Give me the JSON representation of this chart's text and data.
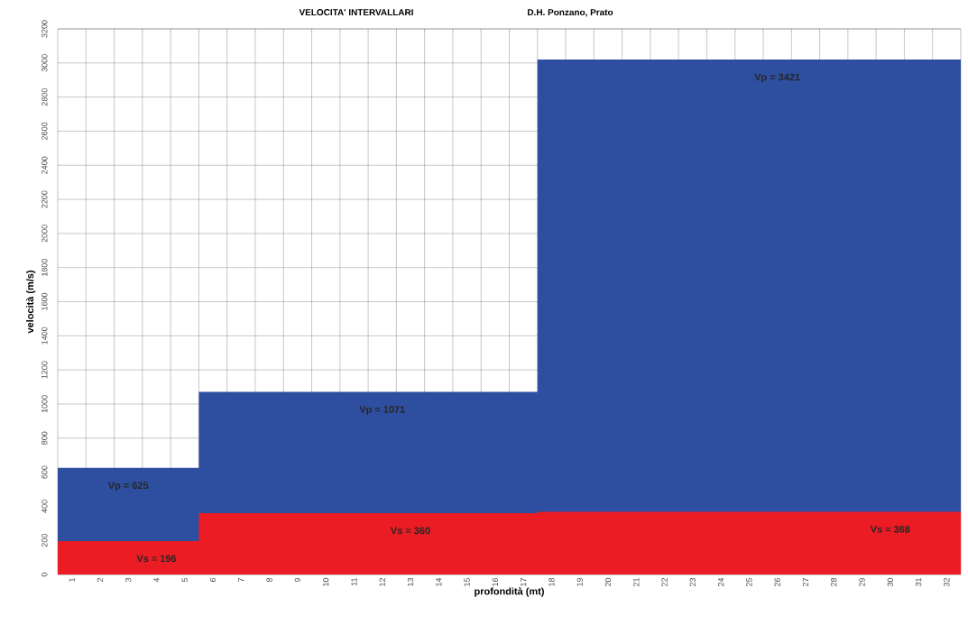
{
  "chart_data": {
    "type": "area",
    "title": "VELOCITA' INTERVALLARI",
    "subtitle": "D.H. Ponzano, Prato",
    "xlabel": "profondità (mt)",
    "ylabel": "velocità (m/s)",
    "series": [
      {
        "color": "#2e4fa0",
        "x": [
          0.5,
          5.5,
          5.5,
          17.5,
          17.5,
          32.5
        ],
        "values": [
          625,
          625,
          1071,
          1071,
          3020,
          3020
        ]
      },
      {
        "color": "#ec1c24",
        "x": [
          0.5,
          5.5,
          5.5,
          17.5,
          17.5,
          32.5
        ],
        "values": [
          196,
          196,
          360,
          360,
          368,
          368
        ]
      }
    ],
    "annotations": [
      {
        "text": "Vp = 625",
        "x": 3,
        "y": 625
      },
      {
        "text": "Vs = 196",
        "x": 4,
        "y": 196
      },
      {
        "text": "Vp = 1071",
        "x": 12,
        "y": 1071
      },
      {
        "text": "Vs = 360",
        "x": 13,
        "y": 360
      },
      {
        "text": "Vp = 3421",
        "x": 26,
        "y": 3020
      },
      {
        "text": "Vs = 368",
        "x": 30,
        "y": 368
      }
    ],
    "xlim": [
      0.5,
      32.5
    ],
    "xticks": [
      1,
      2,
      3,
      4,
      5,
      6,
      7,
      8,
      9,
      10,
      11,
      12,
      13,
      14,
      15,
      16,
      17,
      18,
      19,
      20,
      21,
      22,
      23,
      24,
      25,
      26,
      27,
      28,
      29,
      30,
      31,
      32
    ],
    "ylim": [
      0,
      3200
    ],
    "yticks": [
      0,
      200,
      400,
      600,
      800,
      1000,
      1200,
      1400,
      1600,
      1800,
      2000,
      2200,
      2400,
      2600,
      2800,
      3000,
      3200
    ],
    "grid": true
  }
}
